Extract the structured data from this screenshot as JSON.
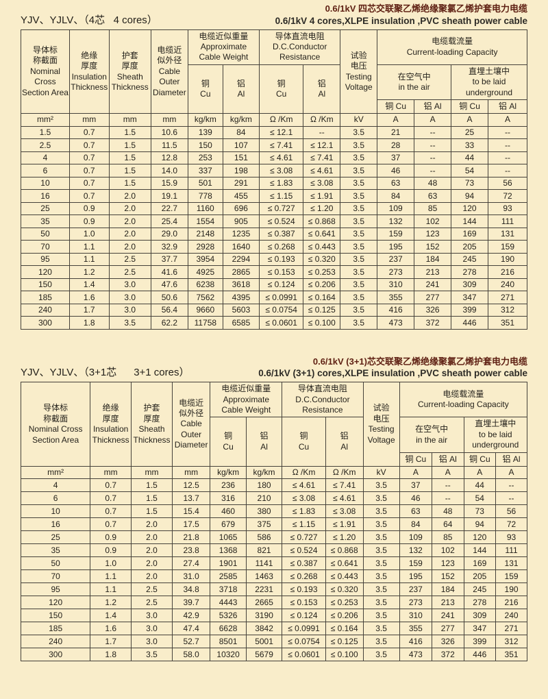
{
  "colors": {
    "page_background": "#f9edca",
    "title_chinese": "#5e1f12",
    "title_english": "#2c2a25",
    "table_border": "#45413a",
    "text": "#221f19"
  },
  "header": {
    "nominal_t1": "导体标\n称截面\nNominal\nCross\nSection Area",
    "nominal_t2": "导体标\n称截面\nNominal Cross\nSection Area",
    "insulation": "绝缘\n厚度\nInsulation\nThickness",
    "sheath": "护套\n厚度\nSheath\nThickness",
    "outer": "电缆近\n似外径\nCable\nOuter\nDiameter",
    "weight": "电缆近似重量\nApproximate\nCable Weight",
    "resistance": "导体直流电阻\nD.C.Conductor\nResistance",
    "testing": "试验\n电压\nTesting\nVoltage",
    "capacity": "电缆载流量\nCurrent-loading Capacity",
    "in_air": "在空气中\nin the air",
    "underground": "直埋土壤中\nto be laid\nunderground",
    "cu_stack": "铜\nCu",
    "al_stack": "铝\nAl",
    "cu_inline": "铜 Cu",
    "al_inline": "铝 Al",
    "units": [
      "mm²",
      "mm",
      "mm",
      "mm",
      "kg/km",
      "kg/km",
      "Ω /Km",
      "Ω /Km",
      "kV",
      "A",
      "A",
      "A",
      "A"
    ]
  },
  "t1": {
    "series_label": "YJV、YJLV、（4芯   4 cores）",
    "title_zh": "0.6/1kV 四芯交联聚乙烯绝缘聚氯乙烯护套电力电缆",
    "title_en": "0.6/1kV 4 cores,XLPE insulation ,PVC sheath power cable",
    "rows": [
      [
        "1.5",
        "0.7",
        "1.5",
        "10.6",
        "139",
        "84",
        "≤ 12.1",
        "--",
        "3.5",
        "21",
        "--",
        "25",
        "--"
      ],
      [
        "2.5",
        "0.7",
        "1.5",
        "11.5",
        "150",
        "107",
        "≤ 7.41",
        "≤ 12.1",
        "3.5",
        "28",
        "--",
        "33",
        "--"
      ],
      [
        "4",
        "0.7",
        "1.5",
        "12.8",
        "253",
        "151",
        "≤ 4.61",
        "≤ 7.41",
        "3.5",
        "37",
        "--",
        "44",
        "--"
      ],
      [
        "6",
        "0.7",
        "1.5",
        "14.0",
        "337",
        "198",
        "≤ 3.08",
        "≤ 4.61",
        "3.5",
        "46",
        "--",
        "54",
        "--"
      ],
      [
        "10",
        "0.7",
        "1.5",
        "15.9",
        "501",
        "291",
        "≤ 1.83",
        "≤ 3.08",
        "3.5",
        "63",
        "48",
        "73",
        "56"
      ],
      [
        "16",
        "0.7",
        "2.0",
        "19.1",
        "778",
        "455",
        "≤ 1.15",
        "≤ 1.91",
        "3.5",
        "84",
        "63",
        "94",
        "72"
      ],
      [
        "25",
        "0.9",
        "2.0",
        "22.7",
        "1160",
        "696",
        "≤ 0.727",
        "≤ 1.20",
        "3.5",
        "109",
        "85",
        "120",
        "93"
      ],
      [
        "35",
        "0.9",
        "2.0",
        "25.4",
        "1554",
        "905",
        "≤ 0.524",
        "≤ 0.868",
        "3.5",
        "132",
        "102",
        "144",
        "111"
      ],
      [
        "50",
        "1.0",
        "2.0",
        "29.0",
        "2148",
        "1235",
        "≤ 0.387",
        "≤ 0.641",
        "3.5",
        "159",
        "123",
        "169",
        "131"
      ],
      [
        "70",
        "1.1",
        "2.0",
        "32.9",
        "2928",
        "1640",
        "≤ 0.268",
        "≤ 0.443",
        "3.5",
        "195",
        "152",
        "205",
        "159"
      ],
      [
        "95",
        "1.1",
        "2.5",
        "37.7",
        "3954",
        "2294",
        "≤ 0.193",
        "≤ 0.320",
        "3.5",
        "237",
        "184",
        "245",
        "190"
      ],
      [
        "120",
        "1.2",
        "2.5",
        "41.6",
        "4925",
        "2865",
        "≤ 0.153",
        "≤ 0.253",
        "3.5",
        "273",
        "213",
        "278",
        "216"
      ],
      [
        "150",
        "1.4",
        "3.0",
        "47.6",
        "6238",
        "3618",
        "≤ 0.124",
        "≤ 0.206",
        "3.5",
        "310",
        "241",
        "309",
        "240"
      ],
      [
        "185",
        "1.6",
        "3.0",
        "50.6",
        "7562",
        "4395",
        "≤ 0.0991",
        "≤ 0.164",
        "3.5",
        "355",
        "277",
        "347",
        "271"
      ],
      [
        "240",
        "1.7",
        "3.0",
        "56.4",
        "9660",
        "5603",
        "≤ 0.0754",
        "≤ 0.125",
        "3.5",
        "416",
        "326",
        "399",
        "312"
      ],
      [
        "300",
        "1.8",
        "3.5",
        "62.2",
        "11758",
        "6585",
        "≤ 0.0601",
        "≤ 0.100",
        "3.5",
        "473",
        "372",
        "446",
        "351"
      ]
    ]
  },
  "t2": {
    "series_label": "YJV、YJLV、（3+1芯      3+1 cores）",
    "title_zh": "0.6/1kV (3+1)芯交联聚乙烯绝缘聚氯乙烯护套电力电缆",
    "title_en": "0.6/1kV (3+1) cores,XLPE insulation ,PVC sheath power cable",
    "rows": [
      [
        "4",
        "0.7",
        "1.5",
        "12.5",
        "236",
        "180",
        "≤ 4.61",
        "≤ 7.41",
        "3.5",
        "37",
        "--",
        "44",
        "--"
      ],
      [
        "6",
        "0.7",
        "1.5",
        "13.7",
        "316",
        "210",
        "≤ 3.08",
        "≤ 4.61",
        "3.5",
        "46",
        "--",
        "54",
        "--"
      ],
      [
        "10",
        "0.7",
        "1.5",
        "15.4",
        "460",
        "380",
        "≤ 1.83",
        "≤ 3.08",
        "3.5",
        "63",
        "48",
        "73",
        "56"
      ],
      [
        "16",
        "0.7",
        "2.0",
        "17.5",
        "679",
        "375",
        "≤ 1.15",
        "≤ 1.91",
        "3.5",
        "84",
        "64",
        "94",
        "72"
      ],
      [
        "25",
        "0.9",
        "2.0",
        "21.8",
        "1065",
        "586",
        "≤ 0.727",
        "≤ 1.20",
        "3.5",
        "109",
        "85",
        "120",
        "93"
      ],
      [
        "35",
        "0.9",
        "2.0",
        "23.8",
        "1368",
        "821",
        "≤ 0.524",
        "≤ 0.868",
        "3.5",
        "132",
        "102",
        "144",
        "111"
      ],
      [
        "50",
        "1.0",
        "2.0",
        "27.4",
        "1901",
        "1141",
        "≤ 0.387",
        "≤ 0.641",
        "3.5",
        "159",
        "123",
        "169",
        "131"
      ],
      [
        "70",
        "1.1",
        "2.0",
        "31.0",
        "2585",
        "1463",
        "≤ 0.268",
        "≤ 0.443",
        "3.5",
        "195",
        "152",
        "205",
        "159"
      ],
      [
        "95",
        "1.1",
        "2.5",
        "34.8",
        "3718",
        "2231",
        "≤ 0.193",
        "≤ 0.320",
        "3.5",
        "237",
        "184",
        "245",
        "190"
      ],
      [
        "120",
        "1.2",
        "2.5",
        "39.7",
        "4443",
        "2665",
        "≤ 0.153",
        "≤ 0.253",
        "3.5",
        "273",
        "213",
        "278",
        "216"
      ],
      [
        "150",
        "1.4",
        "3.0",
        "42.9",
        "5326",
        "3190",
        "≤ 0.124",
        "≤ 0.206",
        "3.5",
        "310",
        "241",
        "309",
        "240"
      ],
      [
        "185",
        "1.6",
        "3.0",
        "47.4",
        "6628",
        "3842",
        "≤ 0.0991",
        "≤ 0.164",
        "3.5",
        "355",
        "277",
        "347",
        "271"
      ],
      [
        "240",
        "1.7",
        "3.0",
        "52.7",
        "8501",
        "5001",
        "≤ 0.0754",
        "≤ 0.125",
        "3.5",
        "416",
        "326",
        "399",
        "312"
      ],
      [
        "300",
        "1.8",
        "3.5",
        "58.0",
        "10320",
        "5679",
        "≤ 0.0601",
        "≤ 0.100",
        "3.5",
        "473",
        "372",
        "446",
        "351"
      ]
    ]
  }
}
